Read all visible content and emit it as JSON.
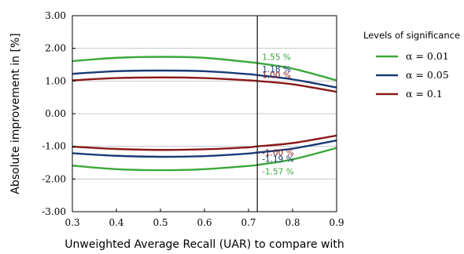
{
  "chart_data": {
    "type": "line",
    "title": "",
    "xlabel": "Unweighted Average Recall (UAR) to compare with",
    "ylabel": "Absolute improvement in [%]",
    "xlim": [
      0.3,
      0.9
    ],
    "ylim": [
      -3.0,
      3.0
    ],
    "xticks": [
      "0.3",
      "0.4",
      "0.5",
      "0.6",
      "0.7",
      "0.8",
      "0.9"
    ],
    "yticks": [
      "-3.00",
      "-2.00",
      "-1.00",
      "0.00",
      "1.00",
      "2.00",
      "3.00"
    ],
    "grid": true,
    "legend_title": "Levels of significance",
    "legend_position": "outside-right",
    "vline_x": 0.72,
    "x": [
      0.3,
      0.4,
      0.5,
      0.6,
      0.7,
      0.72,
      0.8,
      0.9
    ],
    "series": [
      {
        "name": "α = 0.01",
        "color": "#3aa83a",
        "upper": [
          1.61,
          1.71,
          1.74,
          1.71,
          1.58,
          1.55,
          1.38,
          1.02
        ],
        "lower": [
          -1.59,
          -1.7,
          -1.73,
          -1.7,
          -1.6,
          -1.57,
          -1.4,
          -1.05
        ]
      },
      {
        "name": "α = 0.05",
        "color": "#1a3a78",
        "upper": [
          1.22,
          1.3,
          1.32,
          1.3,
          1.21,
          1.18,
          1.05,
          0.8
        ],
        "lower": [
          -1.21,
          -1.29,
          -1.32,
          -1.3,
          -1.22,
          -1.19,
          -1.07,
          -0.82
        ]
      },
      {
        "name": "α = 0.1",
        "color": "#8b1a1a",
        "upper": [
          1.02,
          1.09,
          1.11,
          1.09,
          1.02,
          1.0,
          0.9,
          0.67
        ],
        "lower": [
          -1.01,
          -1.08,
          -1.11,
          -1.09,
          -1.03,
          -1.0,
          -0.9,
          -0.67
        ]
      }
    ],
    "annotations": [
      {
        "text": "1.55 %",
        "x": 0.72,
        "y": 1.55,
        "color": "#3aa83a"
      },
      {
        "text": "1.18 %",
        "x": 0.72,
        "y": 1.18,
        "color": "#1a3a78"
      },
      {
        "text": "1.00 %",
        "x": 0.72,
        "y": 1.0,
        "color": "#8b1a1a"
      },
      {
        "text": "-1.00 %",
        "x": 0.72,
        "y": -1.0,
        "color": "#8b1a1a"
      },
      {
        "text": "-1.19 %",
        "x": 0.72,
        "y": -1.19,
        "color": "#1a3a78"
      },
      {
        "text": "-1.57 %",
        "x": 0.72,
        "y": -1.57,
        "color": "#3aa83a"
      }
    ]
  }
}
